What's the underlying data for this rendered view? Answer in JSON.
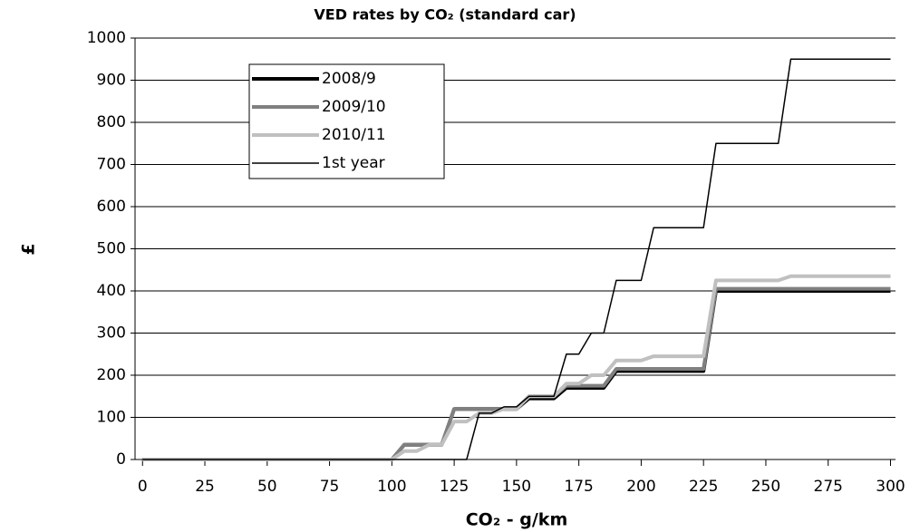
{
  "chart_data": {
    "type": "line",
    "title": "VED rates by CO₂ (standard car)",
    "xlabel": "CO₂ - g/km",
    "ylabel": "£",
    "x": [
      0,
      5,
      10,
      15,
      20,
      25,
      30,
      35,
      40,
      45,
      50,
      55,
      60,
      65,
      70,
      75,
      80,
      85,
      90,
      95,
      100,
      105,
      110,
      115,
      120,
      125,
      130,
      135,
      140,
      145,
      150,
      155,
      160,
      165,
      170,
      175,
      180,
      185,
      190,
      195,
      200,
      205,
      210,
      215,
      220,
      225,
      230,
      235,
      240,
      245,
      250,
      255,
      260,
      265,
      270,
      275,
      280,
      285,
      290,
      295,
      300
    ],
    "series": [
      {
        "name": "2008/9",
        "color": "#000000",
        "width": 4,
        "values": [
          0,
          0,
          0,
          0,
          0,
          0,
          0,
          0,
          0,
          0,
          0,
          0,
          0,
          0,
          0,
          0,
          0,
          0,
          0,
          0,
          0,
          35,
          35,
          35,
          35,
          120,
          120,
          120,
          120,
          120,
          120,
          145,
          145,
          145,
          170,
          170,
          170,
          170,
          210,
          210,
          210,
          210,
          210,
          210,
          210,
          210,
          400,
          400,
          400,
          400,
          400,
          400,
          400,
          400,
          400,
          400,
          400,
          400,
          400,
          400,
          400
        ]
      },
      {
        "name": "2009/10",
        "color": "#808080",
        "width": 4,
        "values": [
          0,
          0,
          0,
          0,
          0,
          0,
          0,
          0,
          0,
          0,
          0,
          0,
          0,
          0,
          0,
          0,
          0,
          0,
          0,
          0,
          0,
          35,
          35,
          35,
          35,
          120,
          120,
          120,
          120,
          120,
          120,
          150,
          150,
          150,
          175,
          175,
          175,
          175,
          215,
          215,
          215,
          215,
          215,
          215,
          215,
          215,
          405,
          405,
          405,
          405,
          405,
          405,
          405,
          405,
          405,
          405,
          405,
          405,
          405,
          405,
          405
        ]
      },
      {
        "name": "2010/11",
        "color": "#c0c0c0",
        "width": 4,
        "values": [
          0,
          0,
          0,
          0,
          0,
          0,
          0,
          0,
          0,
          0,
          0,
          0,
          0,
          0,
          0,
          0,
          0,
          0,
          0,
          0,
          0,
          20,
          20,
          35,
          35,
          90,
          90,
          110,
          110,
          120,
          120,
          150,
          150,
          150,
          180,
          180,
          200,
          200,
          235,
          235,
          235,
          245,
          245,
          245,
          245,
          245,
          425,
          425,
          425,
          425,
          425,
          425,
          435,
          435,
          435,
          435,
          435,
          435,
          435,
          435,
          435
        ]
      },
      {
        "name": "1st year",
        "color": "#000000",
        "width": 1.5,
        "values": [
          0,
          0,
          0,
          0,
          0,
          0,
          0,
          0,
          0,
          0,
          0,
          0,
          0,
          0,
          0,
          0,
          0,
          0,
          0,
          0,
          0,
          0,
          0,
          0,
          0,
          0,
          0,
          110,
          110,
          125,
          125,
          150,
          150,
          150,
          250,
          250,
          300,
          300,
          425,
          425,
          425,
          550,
          550,
          550,
          550,
          550,
          750,
          750,
          750,
          750,
          750,
          750,
          950,
          950,
          950,
          950,
          950,
          950,
          950,
          950,
          950
        ]
      }
    ],
    "xlim": [
      -3,
      302
    ],
    "xticks": [
      0,
      25,
      50,
      75,
      100,
      125,
      150,
      175,
      200,
      225,
      250,
      275,
      300
    ],
    "ylim": [
      0,
      1000
    ],
    "yticks": [
      0,
      100,
      200,
      300,
      400,
      500,
      600,
      700,
      800,
      900,
      1000
    ],
    "grid": true,
    "legend": "upper left"
  }
}
